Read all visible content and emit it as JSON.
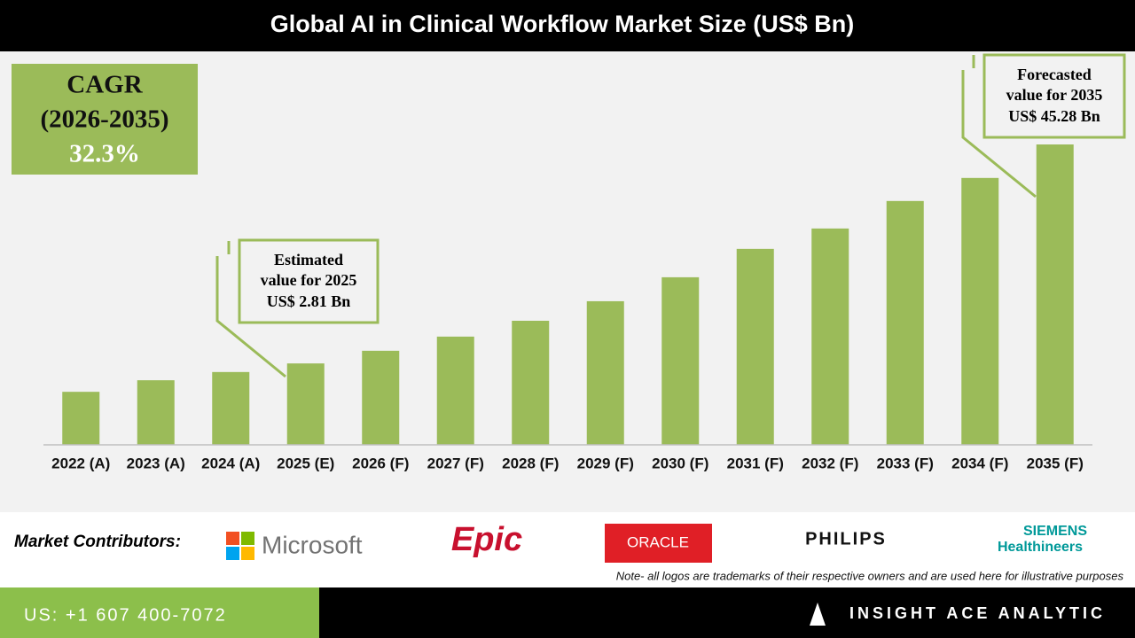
{
  "chart_data": {
    "type": "bar",
    "title": "Global AI in Clinical Workflow Market Size (US$ Bn)",
    "categories": [
      "2022 (A)",
      "2023 (A)",
      "2024 (A)",
      "2025 (E)",
      "2026 (F)",
      "2027 (F)",
      "2028 (F)",
      "2029 (F)",
      "2030 (F)",
      "2031 (F)",
      "2032 (F)",
      "2033 (F)",
      "2034 (F)",
      "2035 (F)"
    ],
    "values": [
      1.96,
      2.27,
      2.52,
      2.81,
      3.3,
      3.95,
      4.83,
      6.19,
      8.39,
      12.03,
      15.58,
      22.09,
      29.6,
      45.28
    ],
    "color": "#9bbb59",
    "ylim": [
      1,
      60
    ],
    "log_scale": true,
    "annotations": [
      {
        "lines": [
          "Estimated",
          "value for 2025",
          "US$ 2.81 Bn"
        ]
      },
      {
        "lines": [
          "Forecasted",
          "value for 2035",
          "US$ 45.28 Bn"
        ]
      }
    ]
  },
  "cagr": {
    "label": "CAGR",
    "period": "(2026-2035)",
    "value": "32.3%"
  },
  "contributors": {
    "label": "Market Contributors:",
    "companies": [
      "Microsoft",
      "Epic",
      "ORACLE",
      "PHILIPS",
      "SIEMENS",
      "Healthineers"
    ]
  },
  "note": "Note- all logos are trademarks of their respective owners and are used here for illustrative purposes",
  "footer": {
    "phone": "US: +1 607 400-7072",
    "brand": "INSIGHT ACE ANALYTIC"
  }
}
